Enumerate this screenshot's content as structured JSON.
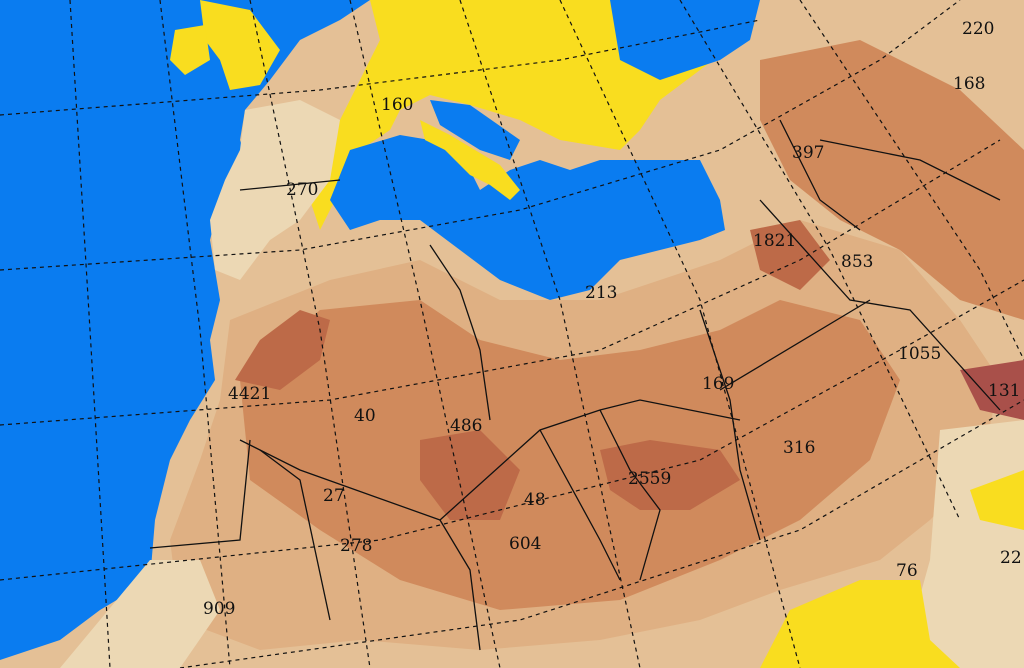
{
  "colors": {
    "ocean": "#0a7cf0",
    "low": "#f9dd1f",
    "light_tan": "#ecd8b4",
    "tan": "#dfb083",
    "brown": "#d08a5c",
    "dark_brown": "#bd6a48",
    "peak": "#a9504a"
  },
  "labels": [
    {
      "text": "220"
    },
    {
      "text": "168"
    },
    {
      "text": "160"
    },
    {
      "text": "397"
    },
    {
      "text": "270"
    },
    {
      "text": "1821"
    },
    {
      "text": "853"
    },
    {
      "text": "213"
    },
    {
      "text": "1055"
    },
    {
      "text": "131"
    },
    {
      "text": "169"
    },
    {
      "text": "4421"
    },
    {
      "text": "40"
    },
    {
      "text": "486"
    },
    {
      "text": "316"
    },
    {
      "text": "2559"
    },
    {
      "text": "27"
    },
    {
      "text": "48"
    },
    {
      "text": "278"
    },
    {
      "text": "604"
    },
    {
      "text": "76"
    },
    {
      "text": "22"
    },
    {
      "text": "909"
    }
  ]
}
